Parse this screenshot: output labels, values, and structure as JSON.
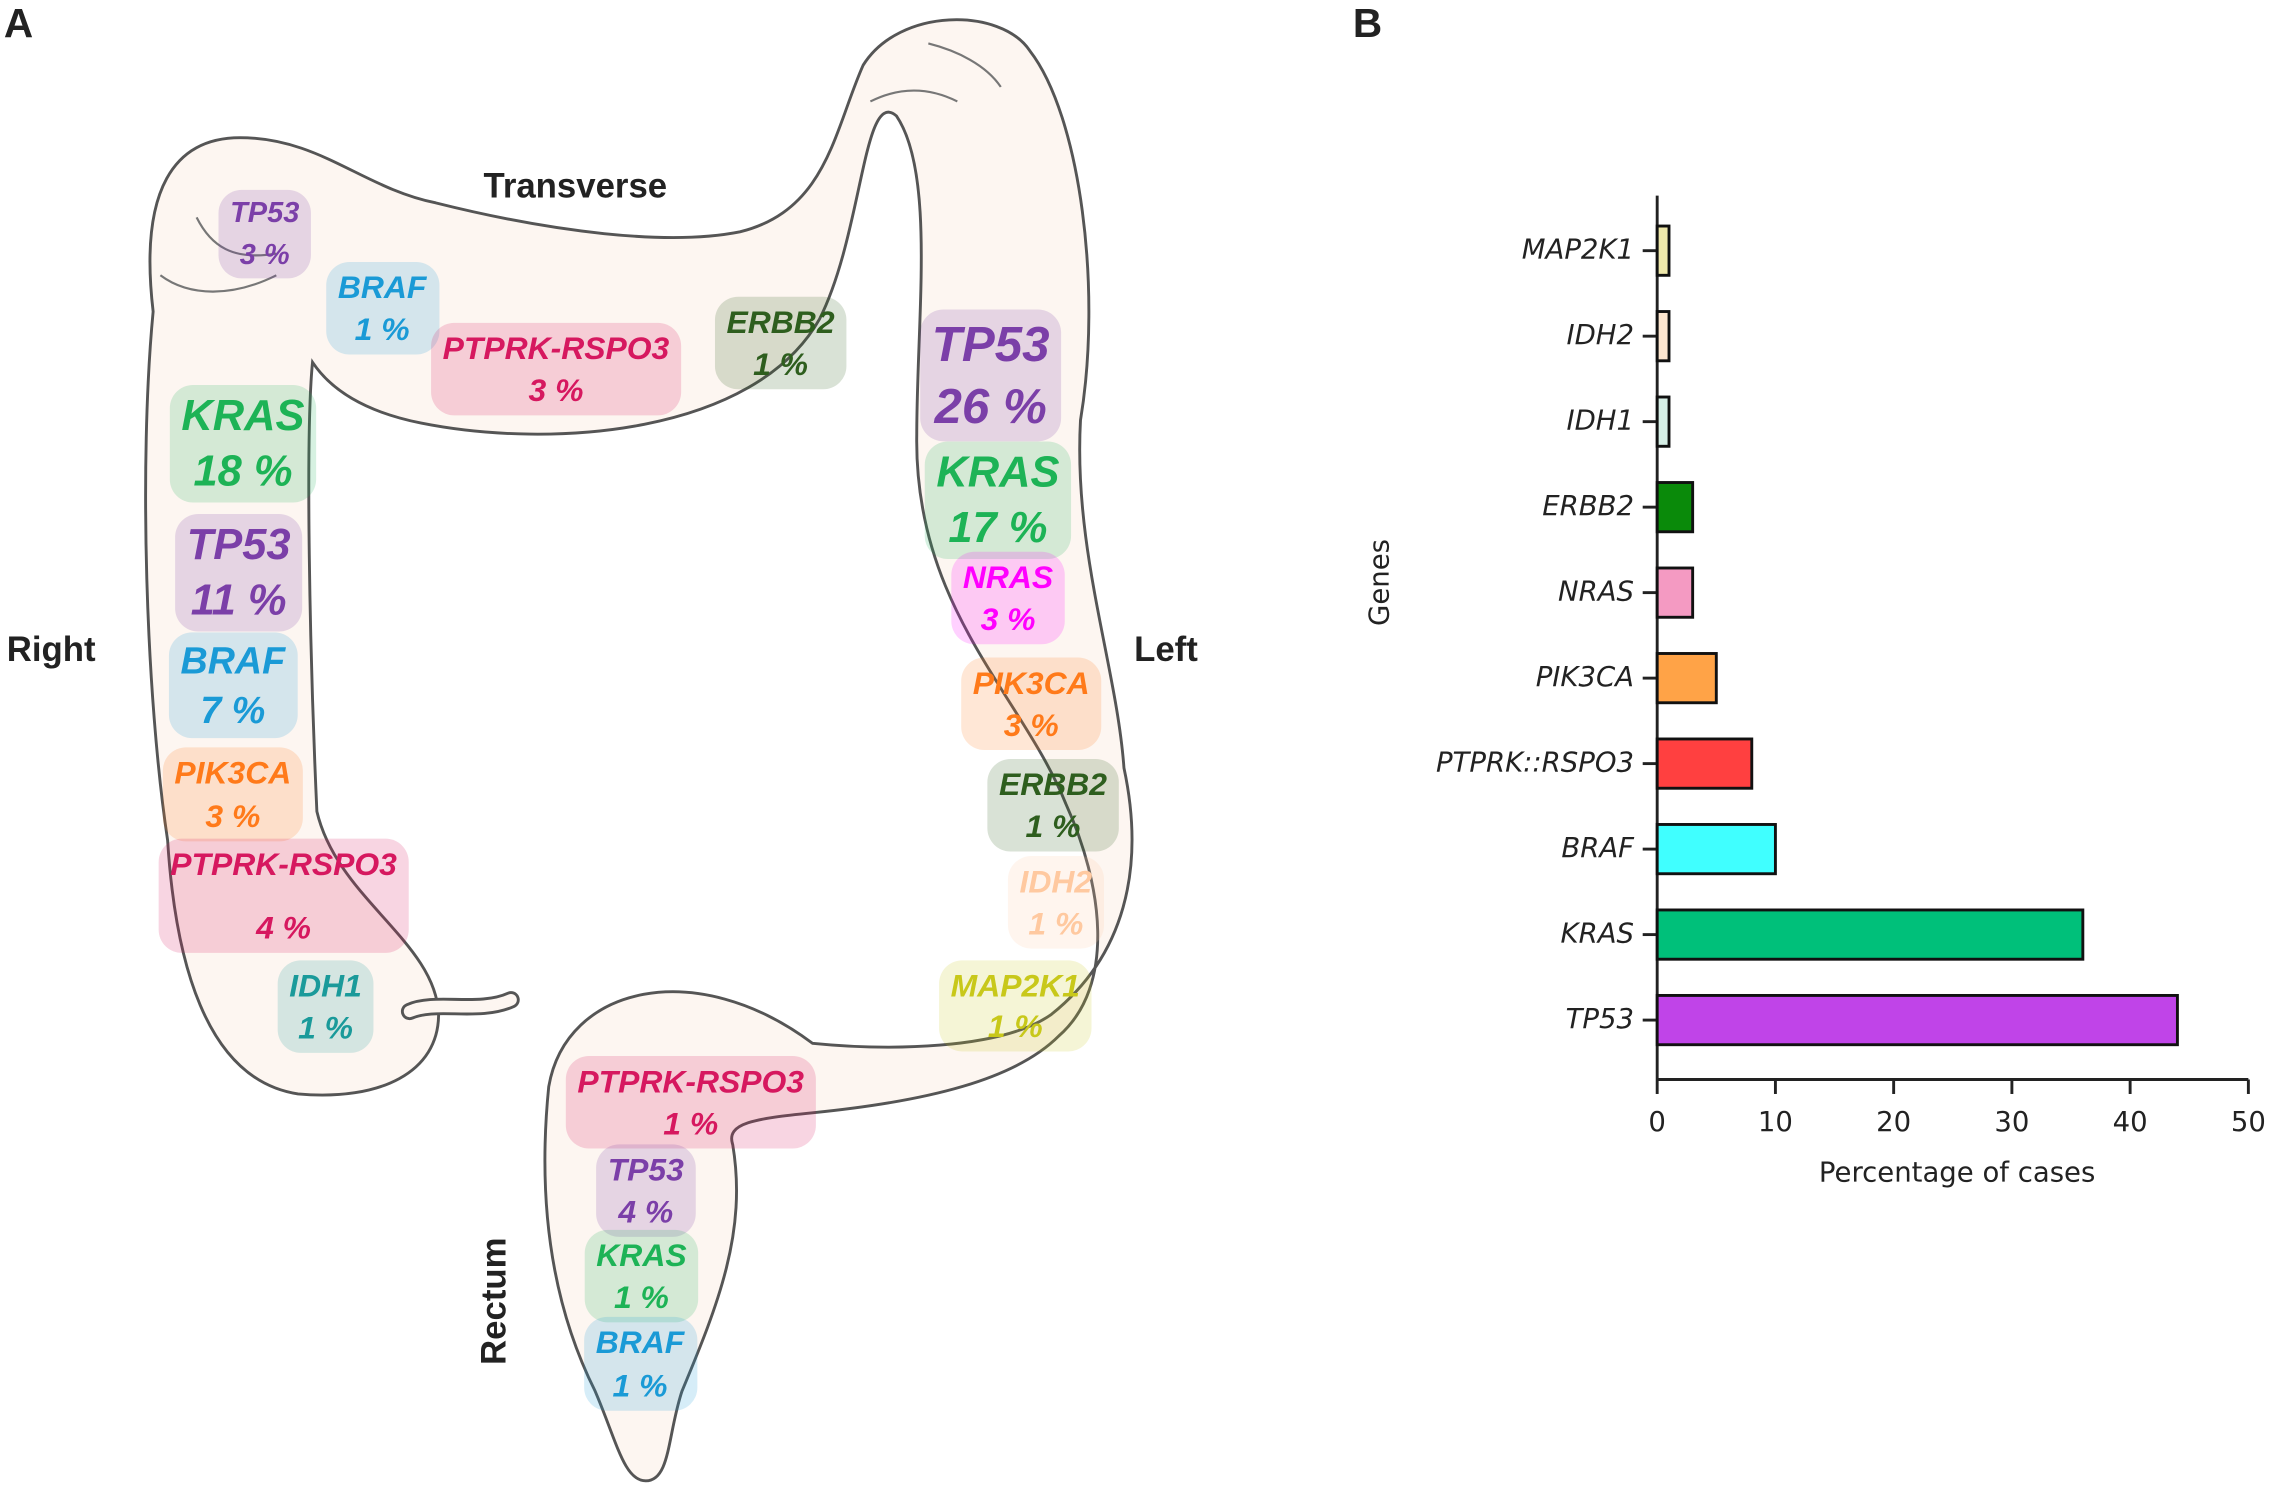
{
  "panel_labels": [
    "A",
    "B"
  ],
  "diagram": {
    "regions": [
      "Transverse",
      "Right",
      "Left",
      "Rectum"
    ],
    "labels": [
      {
        "gene": "TP53",
        "value": "3 %",
        "color": "#7b3fa8"
      },
      {
        "gene": "BRAF",
        "value": "1 %",
        "color": "#1a9ad6"
      },
      {
        "gene": "PTPRK-RSPO3",
        "value": "3 %",
        "color": "#d6185f"
      },
      {
        "gene": "ERBB2",
        "value": "1 %",
        "color": "#2e5e1e"
      },
      {
        "gene": "TP53",
        "value": "26 %",
        "color": "#7b3fa8"
      },
      {
        "gene": "KRAS",
        "value": "17 %",
        "color": "#1db356"
      },
      {
        "gene": "NRAS",
        "value": "3 %",
        "color": "#ff00ff"
      },
      {
        "gene": "PIK3CA",
        "value": "3 %",
        "color": "#ff7a1a"
      },
      {
        "gene": "ERBB2",
        "value": "1 %",
        "color": "#2e5e1e"
      },
      {
        "gene": "IDH2",
        "value": "1 %",
        "color": "#ffc9a0"
      },
      {
        "gene": "MAP2K1",
        "value": "1 %",
        "color": "#c8c81a"
      },
      {
        "gene": "KRAS",
        "value": "18 %",
        "color": "#1db356"
      },
      {
        "gene": "TP53",
        "value": "11 %",
        "color": "#7b3fa8"
      },
      {
        "gene": "BRAF",
        "value": "7 %",
        "color": "#1a9ad6"
      },
      {
        "gene": "PIK3CA",
        "value": "3 %",
        "color": "#ff7a1a"
      },
      {
        "gene": "PTPRK-RSPO3",
        "value": "4 %",
        "color": "#d6185f"
      },
      {
        "gene": "IDH1",
        "value": "1 %",
        "color": "#1a9a9a"
      },
      {
        "gene": "PTPRK-RSPO3",
        "value": "1 %",
        "color": "#d6185f"
      },
      {
        "gene": "TP53",
        "value": "4 %",
        "color": "#7b3fa8"
      },
      {
        "gene": "KRAS",
        "value": "1 %",
        "color": "#1db356"
      },
      {
        "gene": "BRAF",
        "value": "1 %",
        "color": "#1a9ad6"
      }
    ]
  },
  "chart_data": {
    "type": "barh",
    "xlabel": "Percentage of cases",
    "ylabel": "Genes",
    "categories": [
      "MAP2K1",
      "IDH2",
      "IDH1",
      "ERBB2",
      "NRAS",
      "PIK3CA",
      "PTPRK::RSPO3",
      "BRAF",
      "KRAS",
      "TP53"
    ],
    "values": [
      1,
      1,
      1,
      3,
      3,
      5,
      8,
      10,
      36,
      44
    ],
    "colors": [
      "#eee8aa",
      "#fde6cf",
      "#d6efe6",
      "#0a8a0a",
      "#f49ac2",
      "#ffa347",
      "#ff4040",
      "#40ffff",
      "#00c07a",
      "#c044e8"
    ],
    "xlim": [
      0,
      50
    ],
    "xticks": [
      0,
      10,
      20,
      30,
      40,
      50
    ]
  }
}
